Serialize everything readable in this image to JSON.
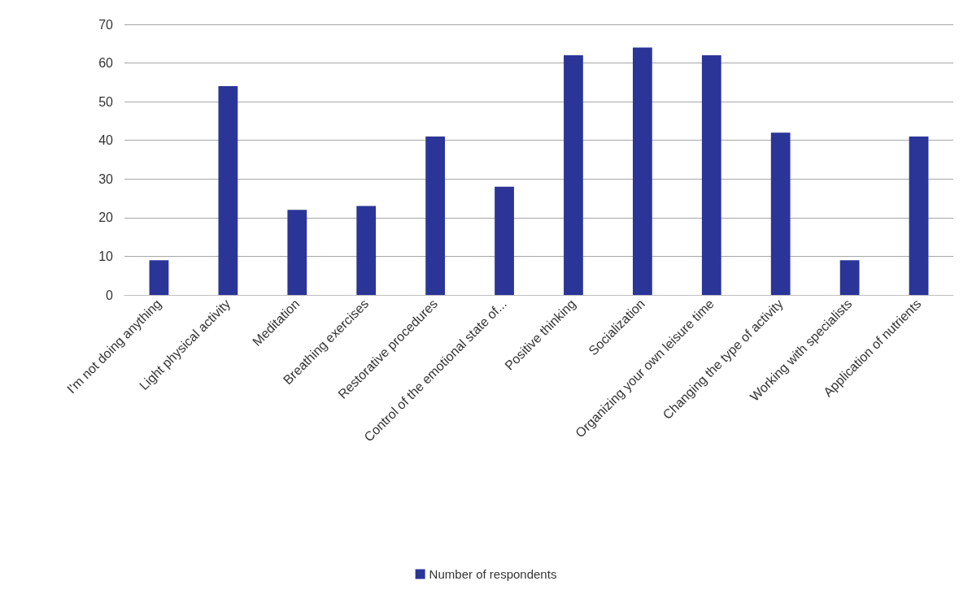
{
  "chart_data": {
    "type": "bar",
    "categories": [
      "I'm not doing anything",
      "Light physical activity",
      "Meditation",
      "Breathing exercises",
      "Restorative procedures",
      "Control of the emotional state of...",
      "Positive thinking",
      "Socialization",
      "Organizing your own leisure time",
      "Changing the type of activity",
      "Working with specialists",
      "Application of nutrients"
    ],
    "series": [
      {
        "name": "Number of respondents",
        "color": "#2b3598",
        "values": [
          9,
          54,
          22,
          23,
          41,
          28,
          62,
          64,
          62,
          42,
          9,
          41
        ]
      }
    ],
    "ylim": [
      0,
      70
    ],
    "yticks": [
      0,
      10,
      20,
      30,
      40,
      50,
      60,
      70
    ],
    "grid": "y",
    "legend": "bottom"
  }
}
